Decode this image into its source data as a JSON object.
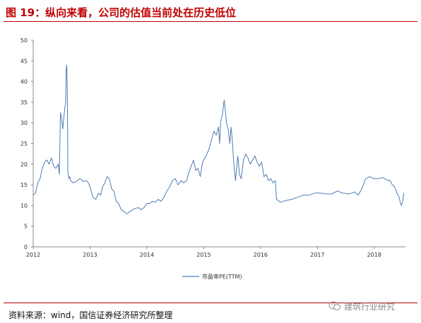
{
  "figure": {
    "title": "图 19：纵向来看，公司的估值当前处在历史低位",
    "source": "资料来源：wind，国信证券经济研究所整理",
    "watermark": "建筑行业研究",
    "watermark_icon": "wechat-icon"
  },
  "chart_data": {
    "type": "line",
    "title": "",
    "xlabel": "",
    "ylabel": "",
    "ylim": [
      0,
      50
    ],
    "xlim": [
      2012.0,
      2018.55
    ],
    "yticks": [
      0,
      5,
      10,
      15,
      20,
      25,
      30,
      35,
      40,
      45,
      50
    ],
    "xticks": [
      "2012",
      "2013",
      "2014",
      "2015",
      "2016",
      "2017",
      "2018"
    ],
    "grid": false,
    "legend_position": "bottom-center",
    "line_color": "#4f7cb5",
    "series": [
      {
        "name": "市盈率PE(TTM)",
        "x": [
          2012.0,
          2012.04,
          2012.08,
          2012.12,
          2012.16,
          2012.2,
          2012.24,
          2012.28,
          2012.32,
          2012.36,
          2012.4,
          2012.44,
          2012.46,
          2012.48,
          2012.5,
          2012.52,
          2012.55,
          2012.57,
          2012.58,
          2012.59,
          2012.6,
          2012.61,
          2012.63,
          2012.64,
          2012.66,
          2012.7,
          2012.76,
          2012.82,
          2012.88,
          2012.94,
          2012.97,
          2013.0,
          2013.05,
          2013.1,
          2013.15,
          2013.19,
          2013.22,
          2013.26,
          2013.3,
          2013.34,
          2013.38,
          2013.42,
          2013.46,
          2013.5,
          2013.55,
          2013.6,
          2013.65,
          2013.7,
          2013.75,
          2013.8,
          2013.85,
          2013.9,
          2013.95,
          2014.0,
          2014.05,
          2014.1,
          2014.15,
          2014.2,
          2014.25,
          2014.3,
          2014.35,
          2014.4,
          2014.45,
          2014.5,
          2014.55,
          2014.6,
          2014.65,
          2014.7,
          2014.74,
          2014.78,
          2014.82,
          2014.86,
          2014.9,
          2014.94,
          2014.98,
          2015.02,
          2015.06,
          2015.1,
          2015.14,
          2015.18,
          2015.22,
          2015.26,
          2015.28,
          2015.3,
          2015.33,
          2015.36,
          2015.38,
          2015.4,
          2015.43,
          2015.46,
          2015.48,
          2015.5,
          2015.53,
          2015.56,
          2015.58,
          2015.6,
          2015.63,
          2015.66,
          2015.7,
          2015.74,
          2015.78,
          2015.82,
          2015.86,
          2015.9,
          2015.94,
          2015.98,
          2016.02,
          2016.06,
          2016.1,
          2016.14,
          2016.18,
          2016.22,
          2016.26,
          2016.28,
          2016.35,
          2016.45,
          2016.55,
          2016.65,
          2016.75,
          2016.85,
          2016.95,
          2017.05,
          2017.15,
          2017.25,
          2017.35,
          2017.45,
          2017.55,
          2017.6,
          2017.65,
          2017.72,
          2017.78,
          2017.85,
          2017.92,
          2018.0,
          2018.08,
          2018.15,
          2018.22,
          2018.28,
          2018.32,
          2018.36,
          2018.4,
          2018.44,
          2018.46,
          2018.48,
          2018.5,
          2018.52
        ],
        "values": [
          12.5,
          13.0,
          15.5,
          16.5,
          19.0,
          20.5,
          21.0,
          20.0,
          21.5,
          19.5,
          19.0,
          20.0,
          17.5,
          32.5,
          31.0,
          28.5,
          33.0,
          35.0,
          43.0,
          44.0,
          38.0,
          18.0,
          16.5,
          17.0,
          16.0,
          15.5,
          15.8,
          16.5,
          15.8,
          16.0,
          15.5,
          14.5,
          12.0,
          11.5,
          13.0,
          12.5,
          14.5,
          15.5,
          17.0,
          16.5,
          14.0,
          13.5,
          11.0,
          10.5,
          9.0,
          8.5,
          8.0,
          8.5,
          9.0,
          9.3,
          9.5,
          9.0,
          9.5,
          10.5,
          10.5,
          11.0,
          10.8,
          11.5,
          11.0,
          12.0,
          13.5,
          14.5,
          16.0,
          16.5,
          15.0,
          16.0,
          15.5,
          16.0,
          18.0,
          19.5,
          21.0,
          18.5,
          19.0,
          17.0,
          20.5,
          21.5,
          22.5,
          24.0,
          26.0,
          28.0,
          27.0,
          29.0,
          25.0,
          30.5,
          32.0,
          35.5,
          33.0,
          30.0,
          28.5,
          25.0,
          29.0,
          26.5,
          20.0,
          16.0,
          19.0,
          22.0,
          17.5,
          16.5,
          21.0,
          22.5,
          21.5,
          20.0,
          21.0,
          22.0,
          20.5,
          19.5,
          20.5,
          17.0,
          17.5,
          16.0,
          16.5,
          15.5,
          16.0,
          11.5,
          10.8,
          11.2,
          11.5,
          12.0,
          12.5,
          12.5,
          13.0,
          13.0,
          12.8,
          12.8,
          13.5,
          13.0,
          12.8,
          13.0,
          13.3,
          12.5,
          14.0,
          16.5,
          17.0,
          16.5,
          16.5,
          16.8,
          16.2,
          16.0,
          15.0,
          14.5,
          13.0,
          12.0,
          10.5,
          10.0,
          11.0,
          13.0
        ]
      }
    ]
  }
}
